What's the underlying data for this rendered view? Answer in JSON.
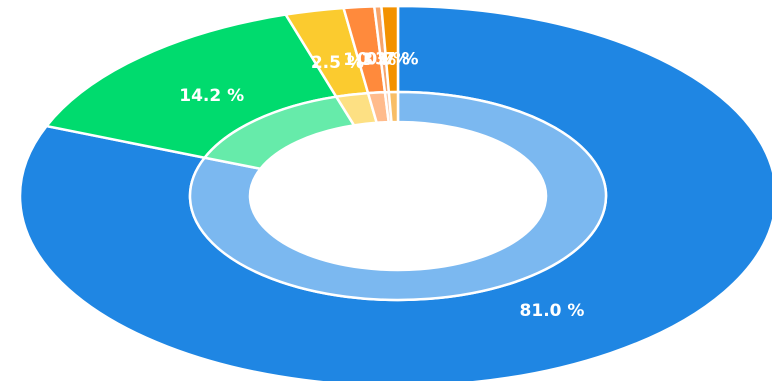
{
  "chart_data": {
    "type": "pie",
    "style": "donut",
    "title": "",
    "slices": [
      {
        "value": 81.0,
        "label": "81.0 %",
        "color": "#1F86E3",
        "inner_color": "#7BB8F0"
      },
      {
        "value": 14.2,
        "label": "14.2 %",
        "color": "#00DB6E",
        "inner_color": "#66EBAA"
      },
      {
        "value": 2.5,
        "label": "2.5 %",
        "color": "#FBCB2F",
        "inner_color": "#FDE083"
      },
      {
        "value": 1.3,
        "label": "1.3 %",
        "color": "#FF8A3C",
        "inner_color": "#FFBB8C"
      },
      {
        "value": 0.3,
        "label": "0.3 %",
        "color": "#F7A46B",
        "inner_color": "#FAC7A4"
      },
      {
        "value": 0.7,
        "label": "0.7 %",
        "color": "#F39200",
        "inner_color": "#F8BE66"
      }
    ],
    "legend": "none"
  }
}
